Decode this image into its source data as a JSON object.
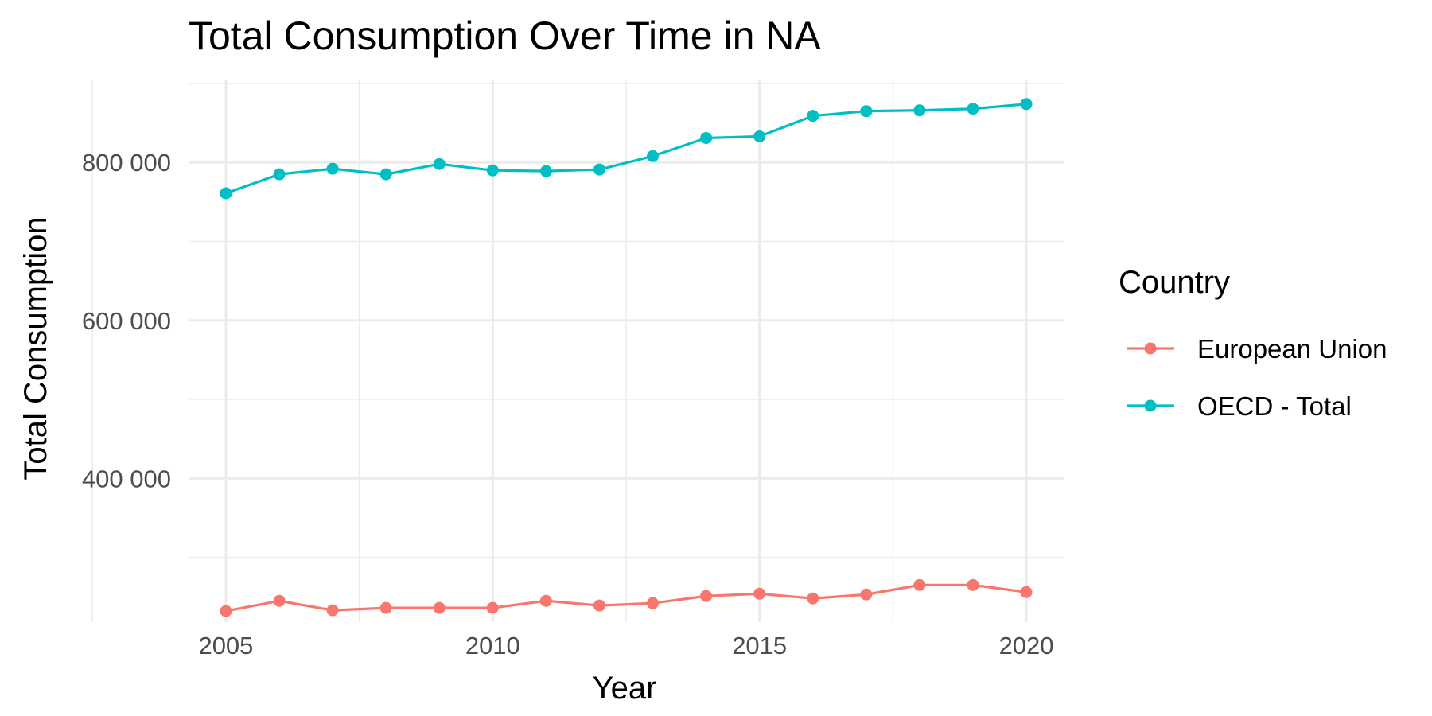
{
  "chart_data": {
    "type": "line",
    "title": "Total Consumption Over Time in NA",
    "xlabel": "Year",
    "ylabel": "Total Consumption",
    "x": [
      2005,
      2006,
      2007,
      2008,
      2009,
      2010,
      2011,
      2012,
      2013,
      2014,
      2015,
      2016,
      2017,
      2018,
      2019,
      2020
    ],
    "xlim": [
      2004.3,
      2020.7
    ],
    "ylim": [
      218000,
      905000
    ],
    "x_ticks": [
      2005,
      2010,
      2015,
      2020
    ],
    "x_tick_labels": [
      "2005",
      "2010",
      "2015",
      "2020"
    ],
    "y_ticks": [
      400000,
      600000,
      800000
    ],
    "y_tick_labels": [
      "400 000",
      "600 000",
      "800 000"
    ],
    "grid": true,
    "legend": {
      "title": "Country",
      "position": "right"
    },
    "series": [
      {
        "name": "European Union",
        "color": "#F8766D",
        "values": [
          232000,
          245000,
          233000,
          236000,
          236000,
          236000,
          245000,
          239000,
          242000,
          251000,
          254000,
          248000,
          253000,
          265000,
          265000,
          256000
        ]
      },
      {
        "name": "OECD - Total",
        "color": "#00BFC4",
        "values": [
          761000,
          785000,
          792000,
          785000,
          798000,
          790000,
          789000,
          791000,
          808000,
          831000,
          833000,
          859000,
          865000,
          866000,
          868000,
          874000
        ]
      }
    ]
  }
}
